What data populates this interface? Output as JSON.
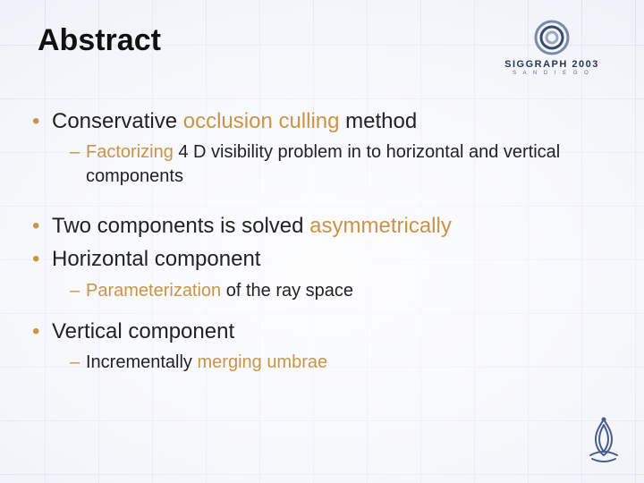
{
  "colors": {
    "background": "#eef0f8",
    "grid": "#d9deef",
    "text": "#222222",
    "title": "#111111",
    "highlight": "#c8944a",
    "bullet": "#c8944a",
    "logo_ring_outer": "#7a8aa8",
    "logo_ring_inner": "#3a4a68",
    "siggraph_text": "#2a3550",
    "bottom_logo": "#4a5c8a"
  },
  "typography": {
    "title_fontsize": 34,
    "body_fontsize": 24,
    "sub_fontsize": 20,
    "font_family": "Verdana"
  },
  "title": "Abstract",
  "header_logo": {
    "main": "SIGGRAPH 2003",
    "sub": "S A N   D I E G O"
  },
  "bullets": [
    {
      "level": 1,
      "segments": [
        {
          "text": "Conservative "
        },
        {
          "text": "occlusion culling",
          "hl": true
        },
        {
          "text": " method"
        }
      ]
    },
    {
      "level": 2,
      "segments": [
        {
          "text": "Factorizing",
          "hl": true
        },
        {
          "text": " 4 D visibility problem in to horizontal and vertical components"
        }
      ]
    },
    {
      "level": 1,
      "gap_before": true,
      "segments": [
        {
          "text": "Two components is solved "
        },
        {
          "text": "asymmetrically",
          "hl": true
        }
      ]
    },
    {
      "level": 1,
      "segments": [
        {
          "text": "Horizontal component"
        }
      ]
    },
    {
      "level": 2,
      "segments": [
        {
          "text": "Parameterization",
          "hl": true
        },
        {
          "text": " of the ray space"
        }
      ]
    },
    {
      "level": 1,
      "segments": [
        {
          "text": "Vertical component"
        }
      ]
    },
    {
      "level": 2,
      "segments": [
        {
          "text": "Incrementally "
        },
        {
          "text": "merging umbrae",
          "hl": true
        }
      ]
    }
  ]
}
